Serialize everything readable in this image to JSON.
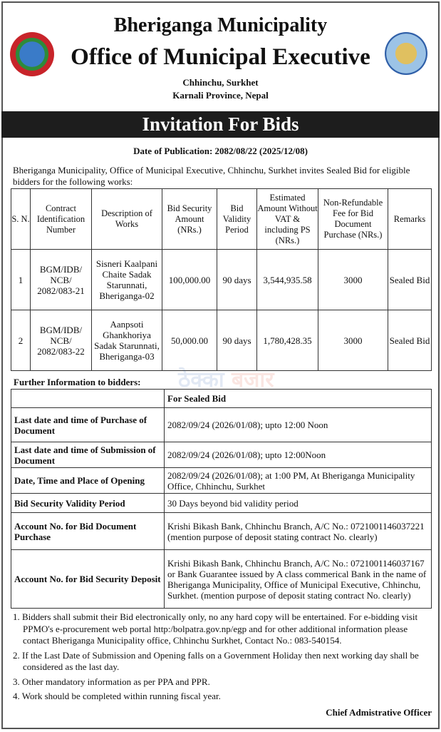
{
  "header": {
    "title": "Bheriganga Municipality",
    "subtitle": "Office of Municipal Executive",
    "address1": "Chhinchu, Surkhet",
    "address2": "Karnali Province, Nepal"
  },
  "banner": "Invitation For Bids",
  "publication": "Date of Publication: 2082/08/22 (2025/12/08)",
  "intro": "Bheriganga Municipality, Office of Municipal Executive, Chhinchu, Surkhet invites Sealed Bid for eligible bidders for the following works:",
  "works": {
    "headers": [
      "S. N.",
      "Contract Identification Number",
      "Description of Works",
      "Bid Security Amount (NRs.)",
      "Bid Validity Period",
      "Estimated Amount Without VAT & including PS (NRs.)",
      "Non-Refundable Fee for Bid Document Purchase (NRs.)",
      "Remarks"
    ],
    "rows": [
      [
        "1",
        "BGM/IDB/ NCB/ 2082/083-21",
        "Sisneri Kaalpani Chaite Sadak Starunnati, Bheriganga-02",
        "100,000.00",
        "90 days",
        "3,544,935.58",
        "3000",
        "Sealed Bid"
      ],
      [
        "2",
        "BGM/IDB/ NCB/ 2082/083-22",
        "Aanpsoti Ghankhoriya Sadak Starunnati, Bheriganga-03",
        "50,000.00",
        "90 days",
        "1,780,428.35",
        "3000",
        "Sealed Bid"
      ]
    ]
  },
  "further": {
    "title": "Further Information to bidders:",
    "col_header": "For Sealed Bid",
    "rows": [
      [
        "Last date and time of Purchase of Document",
        "2082/09/24 (2026/01/08); upto 12:00 Noon"
      ],
      [
        "Last date and time of Submission of Document",
        "2082/09/24 (2026/01/08); upto 12:00Noon"
      ],
      [
        "Date, Time and Place of Opening",
        "2082/09/24 (2026/01/08); at 1:00 PM, At Bheriganga Municipality Office, Chhinchu, Surkhet"
      ],
      [
        "Bid Security Validity Period",
        "30 Days beyond bid validity period"
      ],
      [
        "Account No. for Bid Document Purchase",
        "Krishi Bikash Bank, Chhinchu Branch, A/C No.: 0721001146037221 (mention purpose of deposit stating contract No. clearly)"
      ],
      [
        "Account No. for Bid Security Deposit",
        "Krishi Bikash Bank, Chhinchu Branch, A/C No.: 0721001146037167 or Bank Guarantee issued by A class commerical Bank in the name of Bheriganga Municipality, Office of Municipal Executive, Chhinchu, Surkhet. (mention purpose of deposit stating contract No. clearly)"
      ]
    ]
  },
  "notes": [
    "1. Bidders shall submit their Bid electronically only, no any hard copy will be entertained. For e-bidding visit PPMO's e-procurement web portal http:/bolpatra.gov.np/egp and for other additional information please contact Bheriganga Municipality office, Chhinchu Surkhet, Contact No.: 083-540154.",
    "2. If the Last Date of Submission and Opening falls on a Government Holiday then next working day shall be considered as the last day.",
    "3. Other mandatory information as per PPA and PPR.",
    "4. Work should be completed within running fiscal year."
  ],
  "signature": "Chief Admistrative Officer",
  "watermark": "ठेक्का बजार"
}
